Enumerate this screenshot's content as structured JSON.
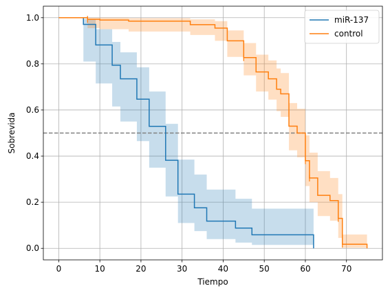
{
  "chart_data": {
    "type": "line",
    "step": "post",
    "xlabel": "Tiempo",
    "ylabel": "Sobrevida",
    "xlim": [
      -3.75,
      78.75
    ],
    "ylim": [
      -0.05,
      1.05
    ],
    "xticks": [
      0,
      10,
      20,
      30,
      40,
      50,
      60,
      70
    ],
    "yticks": [
      0.0,
      0.2,
      0.4,
      0.6,
      0.8,
      1.0
    ],
    "grid": true,
    "legend_position": "top-right",
    "reference_line": {
      "y": 0.5,
      "color": "#808080",
      "style": "dashed"
    },
    "series": [
      {
        "name": "miR-137",
        "color": "#1f77b4",
        "steps": [
          [
            0,
            1.0
          ],
          [
            6,
            0.971
          ],
          [
            9,
            0.882
          ],
          [
            13,
            0.794
          ],
          [
            15,
            0.735
          ],
          [
            19,
            0.647
          ],
          [
            22,
            0.529
          ],
          [
            26,
            0.382
          ],
          [
            29,
            0.235
          ],
          [
            33,
            0.176
          ],
          [
            36,
            0.118
          ],
          [
            43,
            0.088
          ],
          [
            47,
            0.059
          ],
          [
            62,
            0.0
          ]
        ],
        "ci": [
          [
            0,
            1.0,
            1.0
          ],
          [
            6,
            0.81,
            0.995
          ],
          [
            9,
            0.715,
            0.95
          ],
          [
            13,
            0.615,
            0.895
          ],
          [
            15,
            0.55,
            0.85
          ],
          [
            19,
            0.465,
            0.785
          ],
          [
            22,
            0.35,
            0.68
          ],
          [
            26,
            0.225,
            0.54
          ],
          [
            29,
            0.11,
            0.385
          ],
          [
            33,
            0.075,
            0.32
          ],
          [
            36,
            0.04,
            0.255
          ],
          [
            43,
            0.025,
            0.215
          ],
          [
            47,
            0.015,
            0.172
          ],
          [
            62,
            0.015,
            0.172
          ]
        ],
        "censored": []
      },
      {
        "name": "control",
        "color": "#ff7f0e",
        "steps": [
          [
            0,
            1.0
          ],
          [
            7,
            0.993
          ],
          [
            10,
            0.99
          ],
          [
            17,
            0.985
          ],
          [
            32,
            0.97
          ],
          [
            38,
            0.955
          ],
          [
            41,
            0.9
          ],
          [
            45,
            0.827
          ],
          [
            48,
            0.765
          ],
          [
            51,
            0.735
          ],
          [
            53,
            0.69
          ],
          [
            54,
            0.67
          ],
          [
            56,
            0.53
          ],
          [
            58,
            0.5
          ],
          [
            60,
            0.38
          ],
          [
            61,
            0.305
          ],
          [
            63,
            0.23
          ],
          [
            66,
            0.207
          ],
          [
            68,
            0.13
          ],
          [
            69,
            0.018
          ],
          [
            75,
            0.0
          ]
        ],
        "ci": [
          [
            0,
            1.0,
            1.0
          ],
          [
            7,
            0.955,
            1.0
          ],
          [
            10,
            0.95,
            1.0
          ],
          [
            17,
            0.94,
            0.998
          ],
          [
            32,
            0.925,
            0.993
          ],
          [
            38,
            0.9,
            0.985
          ],
          [
            41,
            0.83,
            0.945
          ],
          [
            45,
            0.75,
            0.89
          ],
          [
            48,
            0.68,
            0.84
          ],
          [
            51,
            0.645,
            0.815
          ],
          [
            53,
            0.595,
            0.78
          ],
          [
            54,
            0.57,
            0.76
          ],
          [
            56,
            0.425,
            0.63
          ],
          [
            58,
            0.395,
            0.605
          ],
          [
            60,
            0.27,
            0.49
          ],
          [
            61,
            0.2,
            0.415
          ],
          [
            63,
            0.14,
            0.335
          ],
          [
            66,
            0.12,
            0.305
          ],
          [
            68,
            0.045,
            0.235
          ],
          [
            69,
            0.002,
            0.06
          ],
          [
            75,
            0.002,
            0.06
          ]
        ],
        "censored": [
          [
            7,
            0.993
          ],
          [
            45,
            0.827
          ],
          [
            60,
            0.38
          ],
          [
            61,
            0.305
          ],
          [
            68,
            0.13
          ],
          [
            69,
            0.018
          ]
        ]
      }
    ]
  }
}
